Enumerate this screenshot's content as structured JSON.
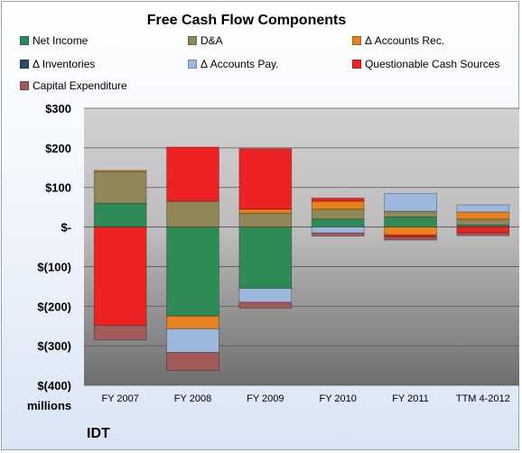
{
  "chart_data": {
    "type": "bar",
    "stacked": true,
    "title": "Free Cash Flow Components",
    "categories": [
      "FY 2007",
      "FY 2008",
      "FY 2009",
      "FY 2010",
      "FY 2011",
      "TTM 4-2012"
    ],
    "ylim": [
      -400,
      300
    ],
    "y_ticks": [
      300,
      200,
      100,
      0,
      -100,
      -200,
      -300,
      -400
    ],
    "y_tick_labels": [
      "$300",
      "$200",
      "$100",
      "$-",
      "$(100)",
      "$(200)",
      "$(300)",
      "$(400)"
    ],
    "ylabel": "",
    "xlabel": "",
    "unit_label": "millions",
    "grid": true,
    "legend_position": "top",
    "series": [
      {
        "name": "Net Income",
        "color": "#2e8b57",
        "values": [
          60,
          -225,
          -155,
          20,
          25,
          5
        ]
      },
      {
        "name": "D&A",
        "color": "#8f8757",
        "values": [
          80,
          65,
          35,
          25,
          15,
          15
        ]
      },
      {
        "name": "Δ Accounts Rec.",
        "color": "#e8821e",
        "values": [
          3,
          -32,
          10,
          20,
          -20,
          18
        ]
      },
      {
        "name": "Δ Inventories",
        "color": "#2f4a66",
        "values": [
          0,
          0,
          0,
          0,
          0,
          0
        ]
      },
      {
        "name": "Δ Accounts Pay.",
        "color": "#9db8dc",
        "values": [
          0,
          -60,
          -35,
          -15,
          45,
          18
        ]
      },
      {
        "name": "Questionable Cash Sources",
        "color": "#ee2222",
        "values": [
          -248,
          137,
          153,
          8,
          -5,
          -15
        ]
      },
      {
        "name": "Capital Expenditure",
        "color": "#a35a5a",
        "values": [
          -37,
          -45,
          -15,
          -8,
          -8,
          -7
        ]
      }
    ]
  },
  "footer": {
    "brand": "IDT"
  }
}
